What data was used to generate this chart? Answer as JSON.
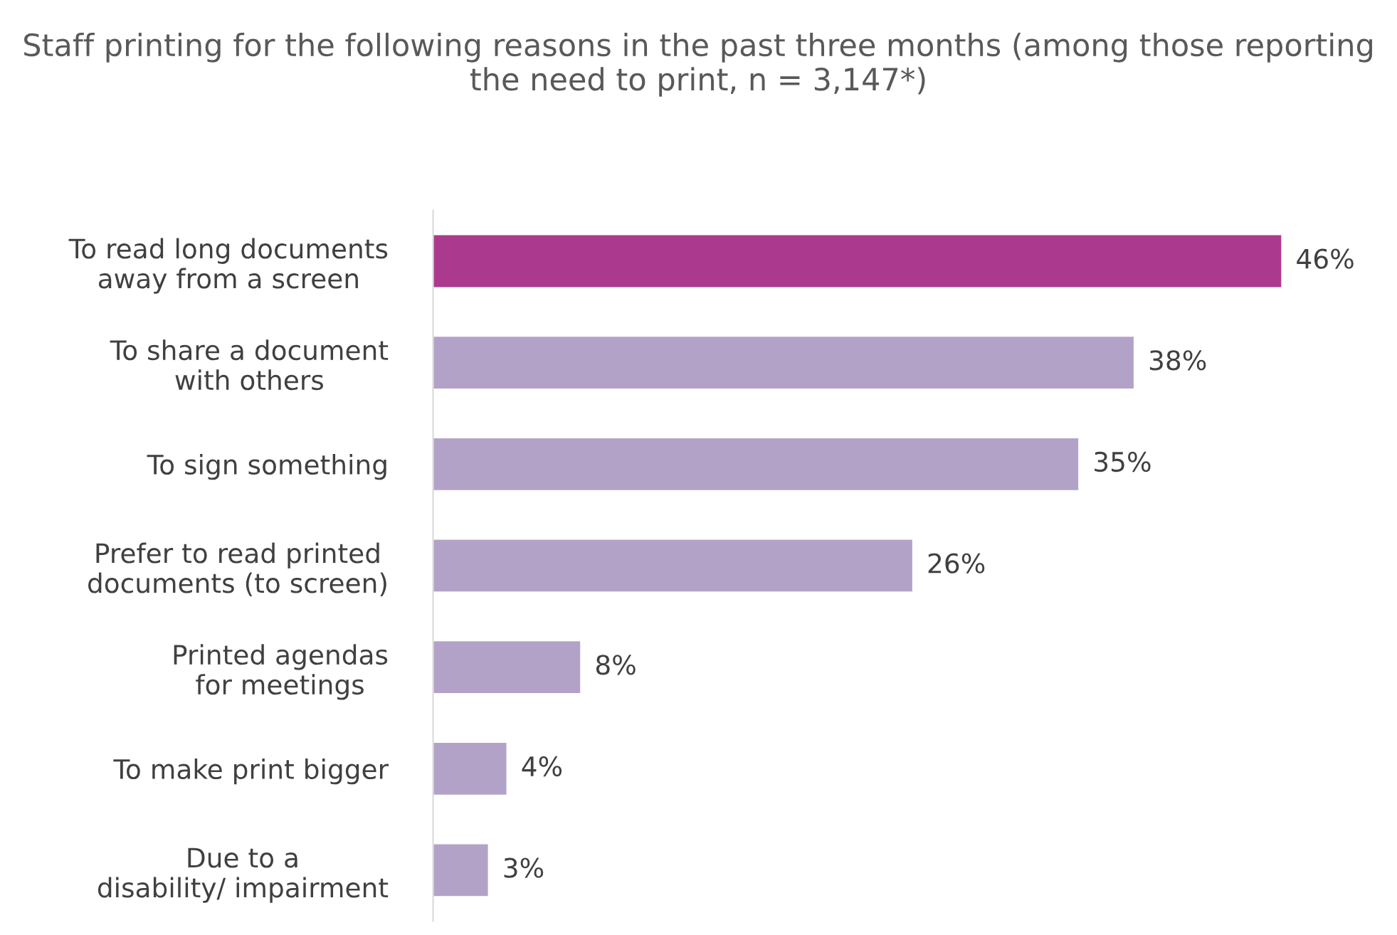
{
  "chart_data": {
    "type": "bar",
    "orientation": "horizontal",
    "title": "Staff printing for the following reasons in the past three months (among those reporting the need to print, n = 3,147*)",
    "categories": [
      "To read long documents\naway from a screen",
      "To share a document\nwith others",
      "To sign something",
      "Prefer to read printed\ndocuments (to screen)",
      "Printed agendas\nfor meetings",
      "To make print bigger",
      "Due to a\ndisability/ impairment"
    ],
    "values": [
      46,
      38,
      35,
      26,
      8,
      4,
      3
    ],
    "colors": [
      "#ab3a8e",
      "#b3a2c8",
      "#b3a2c8",
      "#b3a2c8",
      "#b3a2c8",
      "#b3a2c8",
      "#b3a2c8"
    ],
    "value_labels": [
      "46%",
      "38%",
      "35%",
      "26%",
      "8%",
      "4%",
      "3%"
    ],
    "grid": false,
    "legend": false
  }
}
